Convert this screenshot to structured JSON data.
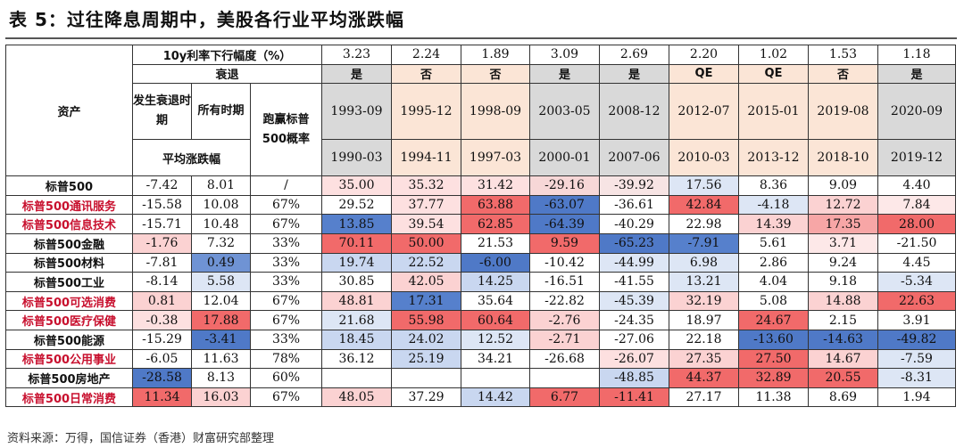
{
  "title": "表 5：过往降息周期中，美股各行业平均涨跌幅",
  "header": {
    "asset_label": "资产",
    "decline_label": "10y利率下行幅度（%）",
    "recession_label": "衰退",
    "col_recession_period": "发生衰退时期",
    "col_all_period": "所有时期",
    "col_win_rate": "跑赢标普500概率",
    "avg_change_label": "平均涨跌幅",
    "periods": [
      {
        "decline": "3.23",
        "recession": "是",
        "end": "1993-09",
        "start": "1990-03",
        "fill": "#d9d9d9"
      },
      {
        "decline": "2.24",
        "recession": "否",
        "end": "1995-12",
        "start": "1994-11",
        "fill": "#fbe5d6"
      },
      {
        "decline": "1.89",
        "recession": "否",
        "end": "1998-09",
        "start": "1997-03",
        "fill": "#fbe5d6"
      },
      {
        "decline": "3.09",
        "recession": "是",
        "end": "2003-05",
        "start": "2000-01",
        "fill": "#d9d9d9"
      },
      {
        "decline": "2.69",
        "recession": "是",
        "end": "2008-12",
        "start": "2007-06",
        "fill": "#d9d9d9"
      },
      {
        "decline": "2.20",
        "recession": "QE",
        "end": "2012-07",
        "start": "2010-03",
        "fill": "#fbe5d6"
      },
      {
        "decline": "1.02",
        "recession": "QE",
        "end": "2015-01",
        "start": "2013-12",
        "fill": "#fbe5d6"
      },
      {
        "decline": "1.53",
        "recession": "否",
        "end": "2019-08",
        "start": "2018-10",
        "fill": "#fbe5d6"
      },
      {
        "decline": "1.18",
        "recession": "是",
        "end": "2020-09",
        "start": "2019-12",
        "fill": "#d9d9d9"
      }
    ]
  },
  "rows": [
    {
      "name": "标普500",
      "red": false,
      "rec": "-7.42",
      "all": "8.01",
      "win": "/",
      "vals": [
        "35.00",
        "35.32",
        "31.42",
        "-29.16",
        "-39.92",
        "17.56",
        "8.36",
        "9.09",
        "4.40"
      ],
      "recFill": "#ffffff",
      "allFill": "#ffffff",
      "fills": [
        "#fde0e0",
        "#fde0e0",
        "#fde0e0",
        "#f7d7d7",
        "#f7e4e4",
        "#dde6f5",
        "#ffffff",
        "#ffffff",
        "#ffffff"
      ]
    },
    {
      "name": "标普500通讯服务",
      "red": true,
      "rec": "-15.58",
      "all": "10.08",
      "win": "67%",
      "vals": [
        "29.52",
        "37.77",
        "63.88",
        "-63.07",
        "-36.61",
        "42.84",
        "-4.18",
        "12.72",
        "7.84"
      ],
      "recFill": "#ffffff",
      "allFill": "#ffffff",
      "fills": [
        "#ffffff",
        "#fde0e0",
        "#f16a6a",
        "#4f79c7",
        "#ffffff",
        "#f16a6a",
        "#dde6f5",
        "#fbd2d2",
        "#fde8e8"
      ]
    },
    {
      "name": "标普500信息技术",
      "red": true,
      "rec": "-15.71",
      "all": "10.48",
      "win": "67%",
      "vals": [
        "13.85",
        "39.54",
        "62.85",
        "-64.39",
        "-40.29",
        "22.98",
        "14.39",
        "17.35",
        "28.00"
      ],
      "recFill": "#ffffff",
      "allFill": "#ffffff",
      "fills": [
        "#5680cc",
        "#fde0e0",
        "#f16a6a",
        "#4f79c7",
        "#ffffff",
        "#ffffff",
        "#fbd2d2",
        "#f7a6a6",
        "#f16a6a"
      ]
    },
    {
      "name": "标普500金融",
      "red": false,
      "rec": "-1.76",
      "all": "7.32",
      "win": "33%",
      "vals": [
        "70.11",
        "50.00",
        "21.53",
        "9.59",
        "-65.23",
        "-7.91",
        "5.61",
        "3.71",
        "-21.50"
      ],
      "recFill": "#fbd2d2",
      "allFill": "#ffffff",
      "fills": [
        "#f16a6a",
        "#f16a6a",
        "#ffffff",
        "#f16a6a",
        "#4f79c7",
        "#5680cc",
        "#ffffff",
        "#fde8e8",
        "#ffffff"
      ]
    },
    {
      "name": "标普500材料",
      "red": false,
      "rec": "-7.81",
      "all": "0.49",
      "win": "33%",
      "vals": [
        "19.74",
        "22.52",
        "-6.00",
        "-10.42",
        "-44.99",
        "6.98",
        "2.86",
        "9.24",
        "4.45"
      ],
      "recFill": "#ffffff",
      "allFill": "#6f93d4",
      "fills": [
        "#c9d7f0",
        "#c9d7f0",
        "#4f79c7",
        "#ffffff",
        "#dde6f5",
        "#dde6f5",
        "#ffffff",
        "#ffffff",
        "#ffffff"
      ]
    },
    {
      "name": "标普500工业",
      "red": false,
      "rec": "-8.14",
      "all": "5.58",
      "win": "33%",
      "vals": [
        "30.85",
        "42.05",
        "14.25",
        "-16.51",
        "-41.55",
        "13.21",
        "4.04",
        "9.18",
        "-5.34"
      ],
      "recFill": "#ffffff",
      "allFill": "#dde6f5",
      "fills": [
        "#ffffff",
        "#fbd2d2",
        "#c9d7f0",
        "#ffffff",
        "#ffffff",
        "#dde6f5",
        "#ffffff",
        "#ffffff",
        "#dde6f5"
      ]
    },
    {
      "name": "标普500可选消费",
      "red": true,
      "rec": "0.81",
      "all": "12.04",
      "win": "67%",
      "vals": [
        "48.81",
        "17.31",
        "35.64",
        "-22.82",
        "-45.39",
        "32.19",
        "5.08",
        "14.88",
        "22.63"
      ],
      "recFill": "#fbd2d2",
      "allFill": "#ffffff",
      "fills": [
        "#fbd2d2",
        "#5680cc",
        "#ffffff",
        "#ffffff",
        "#dde6f5",
        "#fbd2d2",
        "#ffffff",
        "#fbd2d2",
        "#f16a6a"
      ]
    },
    {
      "name": "标普500医疗保健",
      "red": true,
      "rec": "-0.38",
      "all": "17.88",
      "win": "67%",
      "vals": [
        "21.68",
        "55.98",
        "60.64",
        "-2.76",
        "-24.35",
        "18.97",
        "24.67",
        "2.15",
        "3.91"
      ],
      "recFill": "#fde0e0",
      "allFill": "#f16a6a",
      "fills": [
        "#dde6f5",
        "#f16a6a",
        "#f16a6a",
        "#fbd2d2",
        "#ffffff",
        "#ffffff",
        "#f16a6a",
        "#ffffff",
        "#ffffff"
      ]
    },
    {
      "name": "标普500能源",
      "red": false,
      "rec": "-15.29",
      "all": "-3.41",
      "win": "33%",
      "vals": [
        "18.45",
        "24.02",
        "12.52",
        "-2.71",
        "-27.06",
        "22.18",
        "-13.60",
        "-14.63",
        "-49.82"
      ],
      "recFill": "#ffffff",
      "allFill": "#4f79c7",
      "fills": [
        "#c9d7f0",
        "#c9d7f0",
        "#dde6f5",
        "#fbd2d2",
        "#ffffff",
        "#ffffff",
        "#4f79c7",
        "#4f79c7",
        "#4f79c7"
      ]
    },
    {
      "name": "标普500公用事业",
      "red": true,
      "rec": "-6.05",
      "all": "11.63",
      "win": "78%",
      "vals": [
        "36.12",
        "25.19",
        "34.21",
        "-26.68",
        "-26.07",
        "27.35",
        "27.50",
        "14.67",
        "-7.59"
      ],
      "recFill": "#ffffff",
      "allFill": "#ffffff",
      "fills": [
        "#ffffff",
        "#c9d7f0",
        "#ffffff",
        "#ffffff",
        "#fde0e0",
        "#fbd2d2",
        "#f16a6a",
        "#fbd2d2",
        "#dde6f5"
      ]
    },
    {
      "name": "标普500房地产",
      "red": false,
      "rec": "-28.58",
      "all": "8.13",
      "win": "60%",
      "vals": [
        "",
        "",
        "",
        "",
        "-48.85",
        "44.37",
        "32.89",
        "20.55",
        "-8.31"
      ],
      "recFill": "#4f79c7",
      "allFill": "#ffffff",
      "fills": [
        "#ffffff",
        "#ffffff",
        "#ffffff",
        "#ffffff",
        "#c9d7f0",
        "#f16a6a",
        "#f16a6a",
        "#f16a6a",
        "#dde6f5"
      ]
    },
    {
      "name": "标普500日常消费",
      "red": true,
      "rec": "11.34",
      "all": "16.03",
      "win": "67%",
      "vals": [
        "48.05",
        "37.29",
        "14.42",
        "6.77",
        "-11.41",
        "27.17",
        "11.38",
        "8.69",
        "1.94"
      ],
      "recFill": "#f16a6a",
      "allFill": "#fbd2d2",
      "fills": [
        "#fbd2d2",
        "#ffffff",
        "#c9d7f0",
        "#f16a6a",
        "#f16a6a",
        "#ffffff",
        "#ffffff",
        "#ffffff",
        "#ffffff"
      ]
    }
  ],
  "source": "资料来源：万得，国信证券（香港）财富研究部整理"
}
